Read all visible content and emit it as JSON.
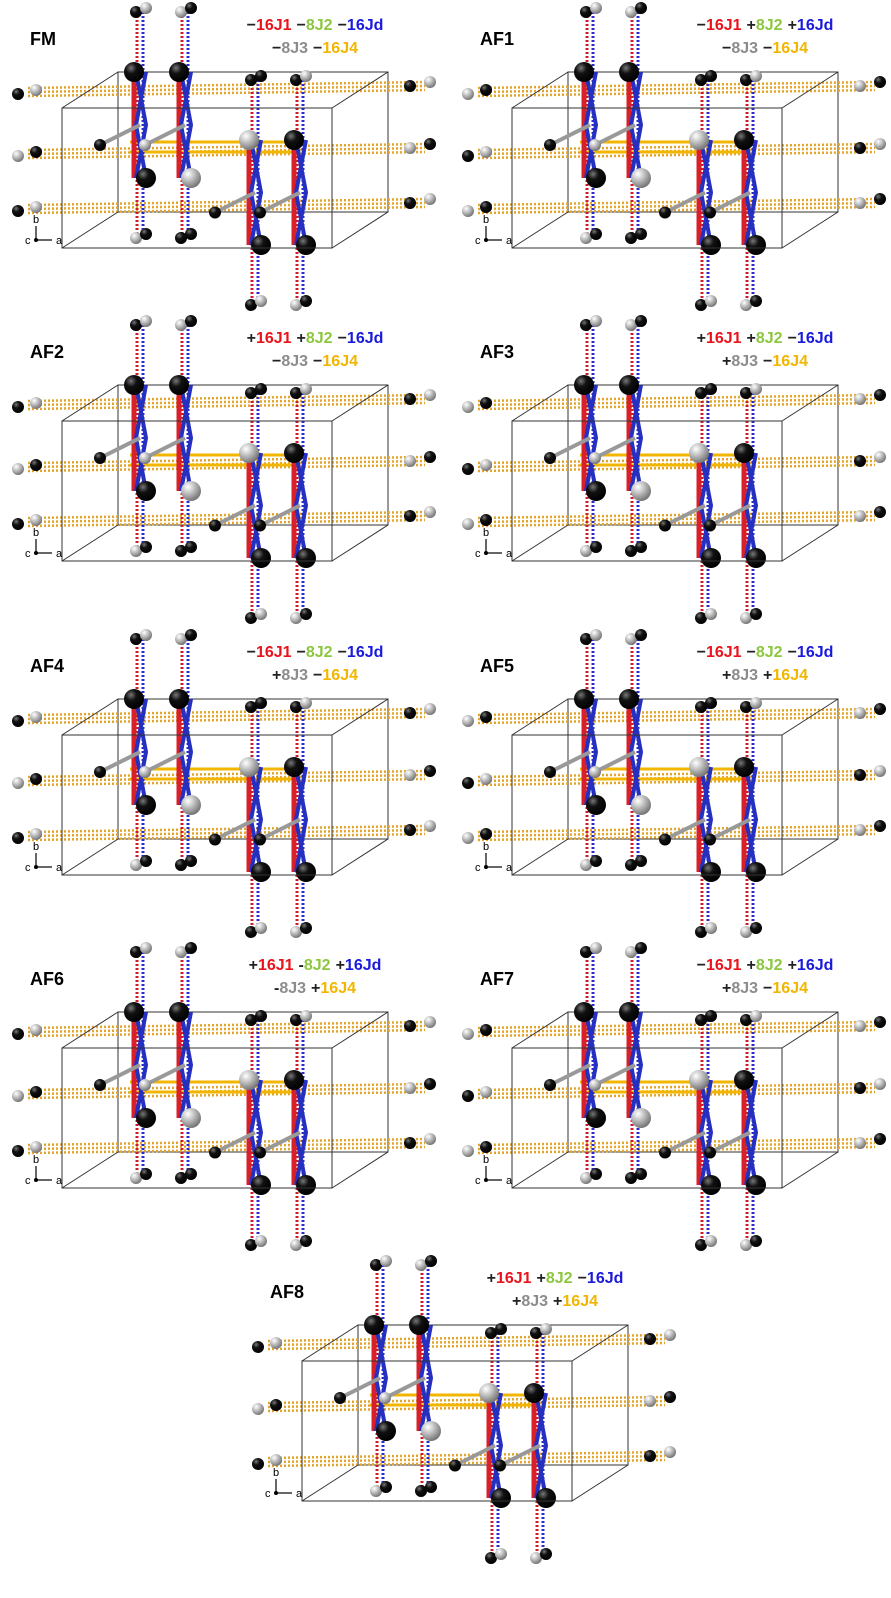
{
  "axis_labels": {
    "b": "b",
    "c": "c",
    "a": "a"
  },
  "panels": [
    {
      "label": "FM",
      "line1": [
        {
          "sign": "−",
          "term": "16J1"
        },
        {
          "sign": "−",
          "term": "8J2"
        },
        {
          "sign": "−",
          "term": "16Jd"
        }
      ],
      "line2": [
        {
          "sign": "−",
          "term": "8J3"
        },
        {
          "sign": "−",
          "term": "16J4"
        }
      ]
    },
    {
      "label": "AF1",
      "line1": [
        {
          "sign": "−",
          "term": "16J1"
        },
        {
          "sign": "+",
          "term": "8J2"
        },
        {
          "sign": "+",
          "term": "16Jd"
        }
      ],
      "line2": [
        {
          "sign": "−",
          "term": "8J3"
        },
        {
          "sign": "−",
          "term": "16J4"
        }
      ]
    },
    {
      "label": "AF2",
      "line1": [
        {
          "sign": "+",
          "term": "16J1"
        },
        {
          "sign": "+",
          "term": "8J2"
        },
        {
          "sign": "−",
          "term": "16Jd"
        }
      ],
      "line2": [
        {
          "sign": "−",
          "term": "8J3"
        },
        {
          "sign": "−",
          "term": "16J4"
        }
      ]
    },
    {
      "label": "AF3",
      "line1": [
        {
          "sign": "+",
          "term": "16J1"
        },
        {
          "sign": "+",
          "term": "8J2"
        },
        {
          "sign": "−",
          "term": "16Jd"
        }
      ],
      "line2": [
        {
          "sign": "+",
          "term": "8J3"
        },
        {
          "sign": "−",
          "term": "16J4"
        }
      ]
    },
    {
      "label": "AF4",
      "line1": [
        {
          "sign": "−",
          "term": "16J1"
        },
        {
          "sign": "−",
          "term": "8J2"
        },
        {
          "sign": "−",
          "term": "16Jd"
        }
      ],
      "line2": [
        {
          "sign": "+",
          "term": "8J3"
        },
        {
          "sign": "−",
          "term": "16J4"
        }
      ]
    },
    {
      "label": "AF5",
      "line1": [
        {
          "sign": "−",
          "term": "16J1"
        },
        {
          "sign": "−",
          "term": "8J2"
        },
        {
          "sign": "−",
          "term": "16Jd"
        }
      ],
      "line2": [
        {
          "sign": "+",
          "term": "8J3"
        },
        {
          "sign": "+",
          "term": "16J4"
        }
      ]
    },
    {
      "label": "AF6",
      "line1": [
        {
          "sign": "+",
          "term": "16J1"
        },
        {
          "sign": "-",
          "term": "8J2"
        },
        {
          "sign": "+",
          "term": "16Jd"
        }
      ],
      "line2": [
        {
          "sign": "-",
          "term": "8J3"
        },
        {
          "sign": "+",
          "term": "16J4"
        }
      ]
    },
    {
      "label": "AF7",
      "line1": [
        {
          "sign": "−",
          "term": "16J1"
        },
        {
          "sign": "+",
          "term": "8J2"
        },
        {
          "sign": "+",
          "term": "16Jd"
        }
      ],
      "line2": [
        {
          "sign": "+",
          "term": "8J3"
        },
        {
          "sign": "−",
          "term": "16J4"
        }
      ]
    },
    {
      "label": "AF8",
      "line1": [
        {
          "sign": "+",
          "term": "16J1"
        },
        {
          "sign": "+",
          "term": "8J2"
        },
        {
          "sign": "−",
          "term": "16Jd"
        }
      ],
      "line2": [
        {
          "sign": "+",
          "term": "8J3"
        },
        {
          "sign": "+",
          "term": "16J4"
        }
      ]
    }
  ]
}
